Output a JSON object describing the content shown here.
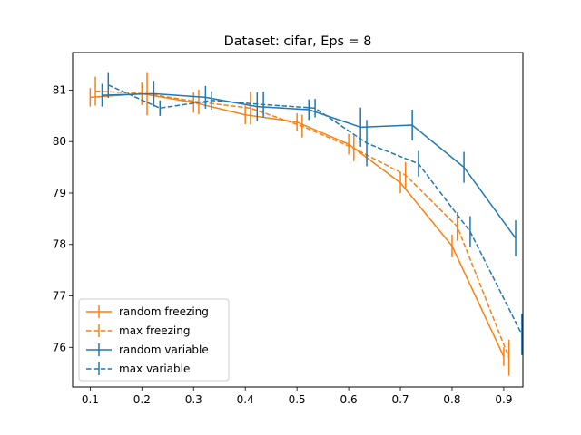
{
  "chart_data": {
    "type": "line",
    "title": "Dataset: cifar, Eps = 8",
    "xlabel": "",
    "ylabel": "",
    "xlim": [
      0.066,
      0.937
    ],
    "ylim": [
      75.23,
      81.73
    ],
    "xticks": [
      0.1,
      0.2,
      0.3,
      0.4,
      0.5,
      0.6,
      0.7,
      0.8,
      0.9
    ],
    "xtick_labels": [
      "0.1",
      "0.2",
      "0.3",
      "0.4",
      "0.5",
      "0.6",
      "0.7",
      "0.8",
      "0.9"
    ],
    "yticks": [
      76,
      77,
      78,
      79,
      80,
      81
    ],
    "ytick_labels": [
      "76",
      "77",
      "78",
      "79",
      "80",
      "81"
    ],
    "grid": false,
    "legend_position": "lower-left",
    "series": [
      {
        "name": "random freezing",
        "color": "#ff7f0e",
        "linestyle": "solid",
        "x": [
          0.1,
          0.2,
          0.3,
          0.4,
          0.5,
          0.6,
          0.7,
          0.8,
          0.9
        ],
        "y": [
          80.86,
          80.93,
          80.76,
          80.52,
          80.38,
          79.95,
          79.2,
          77.97,
          75.82
        ],
        "yerr": [
          0.18,
          0.22,
          0.2,
          0.18,
          0.17,
          0.2,
          0.2,
          0.22,
          0.18
        ]
      },
      {
        "name": "max freezing",
        "color": "#ff7f0e",
        "linestyle": "dashed",
        "x": [
          0.11,
          0.21,
          0.31,
          0.41,
          0.51,
          0.61,
          0.71,
          0.81,
          0.91
        ],
        "y": [
          80.98,
          80.93,
          80.77,
          80.65,
          80.3,
          79.87,
          79.35,
          78.35,
          75.8
        ],
        "yerr": [
          0.28,
          0.42,
          0.24,
          0.32,
          0.22,
          0.25,
          0.25,
          0.28,
          0.35
        ]
      },
      {
        "name": "random variable",
        "color": "#1f77b4",
        "linestyle": "solid",
        "x": [
          0.123,
          0.223,
          0.323,
          0.423,
          0.523,
          0.623,
          0.723,
          0.823,
          0.923
        ],
        "y": [
          80.9,
          80.93,
          80.86,
          80.68,
          80.62,
          80.28,
          80.32,
          79.5,
          78.12
        ],
        "yerr": [
          0.22,
          0.25,
          0.22,
          0.28,
          0.2,
          0.38,
          0.3,
          0.3,
          0.35
        ]
      },
      {
        "name": "max variable",
        "color": "#1f77b4",
        "linestyle": "dashed",
        "x": [
          0.135,
          0.235,
          0.335,
          0.435,
          0.535,
          0.635,
          0.735,
          0.835,
          0.935
        ],
        "y": [
          81.1,
          80.65,
          80.8,
          80.72,
          80.65,
          79.97,
          79.57,
          78.25,
          76.25
        ],
        "yerr": [
          0.25,
          0.15,
          0.18,
          0.25,
          0.18,
          0.45,
          0.25,
          0.3,
          0.4
        ]
      }
    ]
  }
}
